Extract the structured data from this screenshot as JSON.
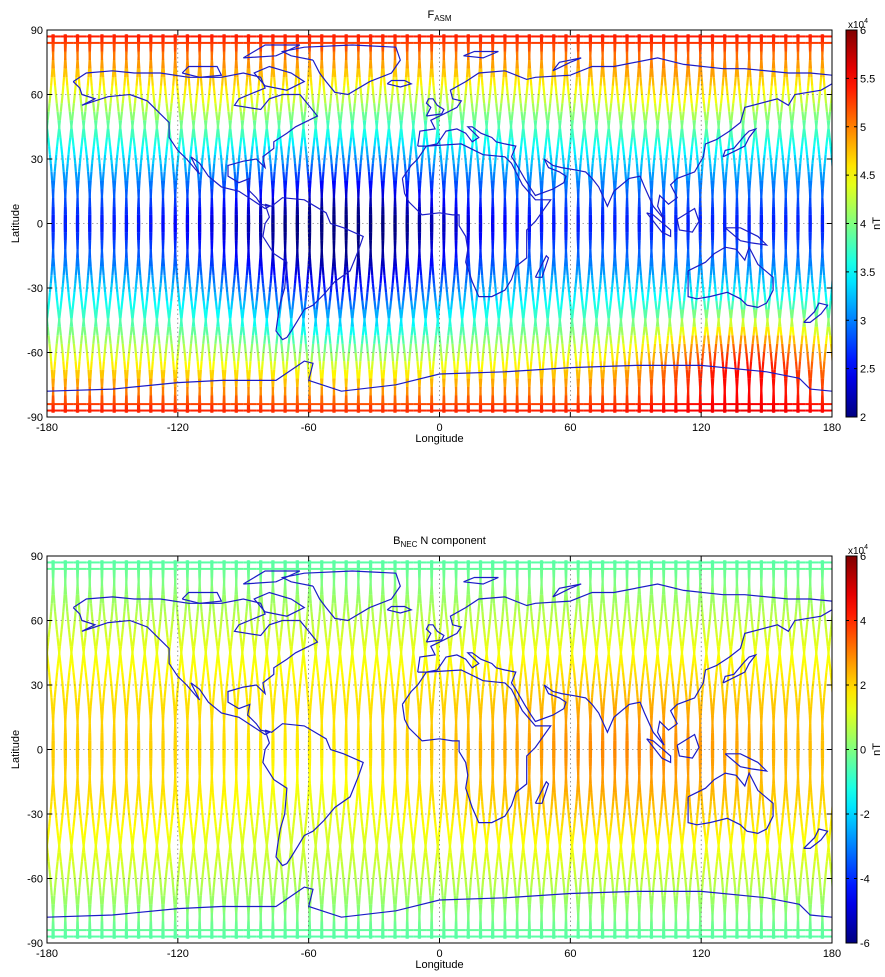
{
  "chart_data": [
    {
      "type": "heatmap",
      "title_main": "F",
      "title_sub": "ASM",
      "title_suffix": "",
      "xlabel": "Longitude",
      "ylabel": "Latitude",
      "xlim": [
        -180,
        180
      ],
      "ylim": [
        -90,
        90
      ],
      "xticks": [
        -180,
        -120,
        -60,
        0,
        60,
        120,
        180
      ],
      "yticks": [
        -90,
        -60,
        -30,
        0,
        30,
        60,
        90
      ],
      "grid": true,
      "colorbar": {
        "label": "nT",
        "exponent_base": "x10",
        "exponent_power": "4",
        "clim": [
          2,
          6
        ],
        "ticks": [
          "2",
          "2.5",
          "3",
          "3.5",
          "4",
          "4.5",
          "5",
          "5.5",
          "6"
        ],
        "colormap": "jet"
      },
      "track_spacing_deg": 5.6,
      "field_model": "total_intensity"
    },
    {
      "type": "heatmap",
      "title_main": "B",
      "title_sub": "NEC",
      "title_suffix": " N component",
      "xlabel": "Longitude",
      "ylabel": "Latitude",
      "xlim": [
        -180,
        180
      ],
      "ylim": [
        -90,
        90
      ],
      "xticks": [
        -180,
        -120,
        -60,
        0,
        60,
        120,
        180
      ],
      "yticks": [
        -90,
        -60,
        -30,
        0,
        30,
        60,
        90
      ],
      "grid": true,
      "colorbar": {
        "label": "nT",
        "exponent_base": "x10",
        "exponent_power": "4",
        "clim": [
          -6,
          6
        ],
        "ticks": [
          "-6",
          "-4",
          "-2",
          "0",
          "2",
          "4",
          "6"
        ],
        "colormap": "jet"
      },
      "track_spacing_deg": 5.6,
      "field_model": "north_component"
    }
  ],
  "colors": {
    "coastline": "#1c1cc8",
    "grid": "#555555",
    "axes": "#000000"
  }
}
